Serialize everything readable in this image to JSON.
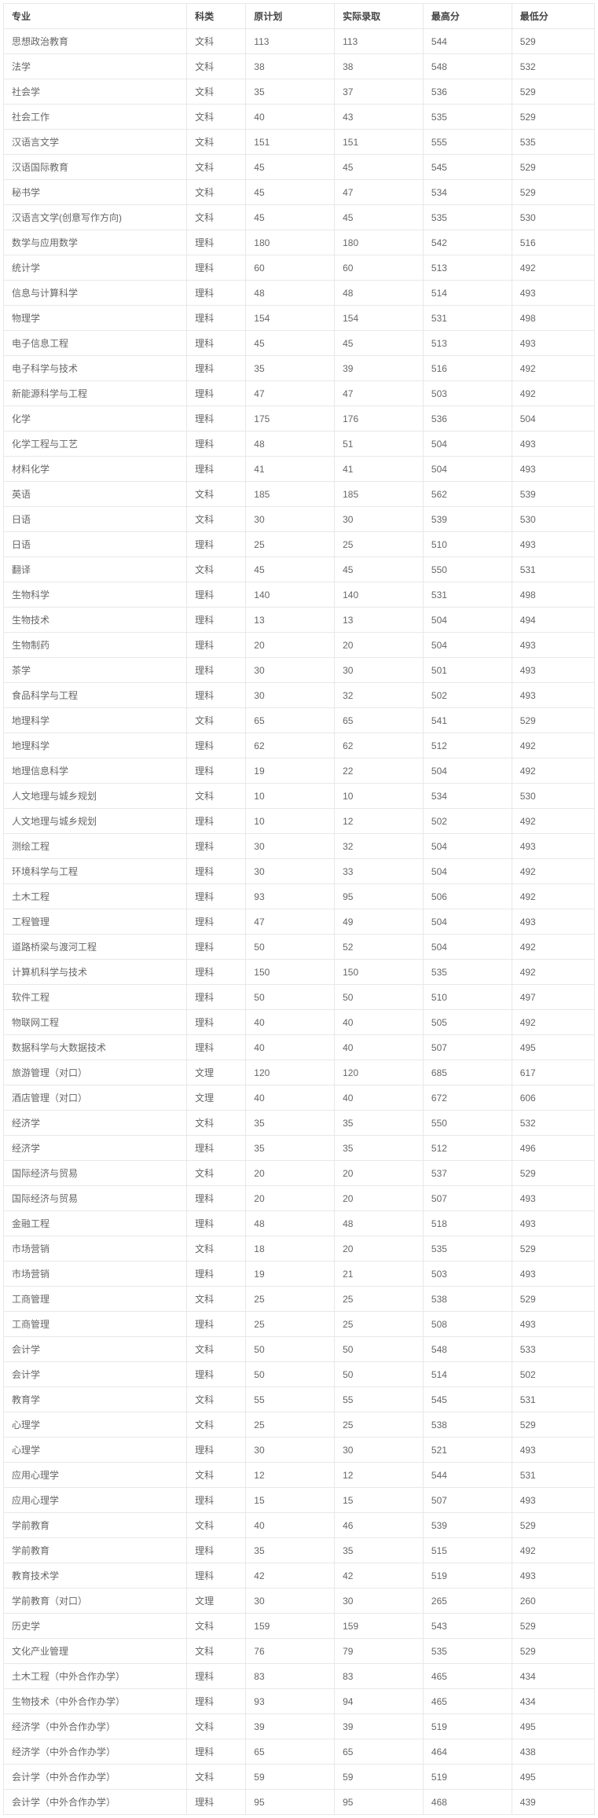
{
  "table": {
    "columns": [
      "专业",
      "科类",
      "原计划",
      "实际录取",
      "最高分",
      "最低分"
    ],
    "rows": [
      [
        "思想政治教育",
        "文科",
        "113",
        "113",
        "544",
        "529"
      ],
      [
        "法学",
        "文科",
        "38",
        "38",
        "548",
        "532"
      ],
      [
        "社会学",
        "文科",
        "35",
        "37",
        "536",
        "529"
      ],
      [
        "社会工作",
        "文科",
        "40",
        "43",
        "535",
        "529"
      ],
      [
        "汉语言文学",
        "文科",
        "151",
        "151",
        "555",
        "535"
      ],
      [
        "汉语国际教育",
        "文科",
        "45",
        "45",
        "545",
        "529"
      ],
      [
        "秘书学",
        "文科",
        "45",
        "47",
        "534",
        "529"
      ],
      [
        "汉语言文学(创意写作方向)",
        "文科",
        "45",
        "45",
        "535",
        "530"
      ],
      [
        "数学与应用数学",
        "理科",
        "180",
        "180",
        "542",
        "516"
      ],
      [
        "统计学",
        "理科",
        "60",
        "60",
        "513",
        "492"
      ],
      [
        "信息与计算科学",
        "理科",
        "48",
        "48",
        "514",
        "493"
      ],
      [
        "物理学",
        "理科",
        "154",
        "154",
        "531",
        "498"
      ],
      [
        "电子信息工程",
        "理科",
        "45",
        "45",
        "513",
        "493"
      ],
      [
        "电子科学与技术",
        "理科",
        "35",
        "39",
        "516",
        "492"
      ],
      [
        "新能源科学与工程",
        "理科",
        "47",
        "47",
        "503",
        "492"
      ],
      [
        "化学",
        "理科",
        "175",
        "176",
        "536",
        "504"
      ],
      [
        "化学工程与工艺",
        "理科",
        "48",
        "51",
        "504",
        "493"
      ],
      [
        "材料化学",
        "理科",
        "41",
        "41",
        "504",
        "493"
      ],
      [
        "英语",
        "文科",
        "185",
        "185",
        "562",
        "539"
      ],
      [
        "日语",
        "文科",
        "30",
        "30",
        "539",
        "530"
      ],
      [
        "日语",
        "理科",
        "25",
        "25",
        "510",
        "493"
      ],
      [
        "翻译",
        "文科",
        "45",
        "45",
        "550",
        "531"
      ],
      [
        "生物科学",
        "理科",
        "140",
        "140",
        "531",
        "498"
      ],
      [
        "生物技术",
        "理科",
        "13",
        "13",
        "504",
        "494"
      ],
      [
        "生物制药",
        "理科",
        "20",
        "20",
        "504",
        "493"
      ],
      [
        "茶学",
        "理科",
        "30",
        "30",
        "501",
        "493"
      ],
      [
        "食品科学与工程",
        "理科",
        "30",
        "32",
        "502",
        "493"
      ],
      [
        "地理科学",
        "文科",
        "65",
        "65",
        "541",
        "529"
      ],
      [
        "地理科学",
        "理科",
        "62",
        "62",
        "512",
        "492"
      ],
      [
        "地理信息科学",
        "理科",
        "19",
        "22",
        "504",
        "492"
      ],
      [
        "人文地理与城乡规划",
        "文科",
        "10",
        "10",
        "534",
        "530"
      ],
      [
        "人文地理与城乡规划",
        "理科",
        "10",
        "12",
        "502",
        "492"
      ],
      [
        "测绘工程",
        "理科",
        "30",
        "32",
        "504",
        "493"
      ],
      [
        "环境科学与工程",
        "理科",
        "30",
        "33",
        "504",
        "492"
      ],
      [
        "土木工程",
        "理科",
        "93",
        "95",
        "506",
        "492"
      ],
      [
        "工程管理",
        "理科",
        "47",
        "49",
        "504",
        "493"
      ],
      [
        "道路桥梁与渡河工程",
        "理科",
        "50",
        "52",
        "504",
        "492"
      ],
      [
        "计算机科学与技术",
        "理科",
        "150",
        "150",
        "535",
        "492"
      ],
      [
        "软件工程",
        "理科",
        "50",
        "50",
        "510",
        "497"
      ],
      [
        "物联网工程",
        "理科",
        "40",
        "40",
        "505",
        "492"
      ],
      [
        "数据科学与大数据技术",
        "理科",
        "40",
        "40",
        "507",
        "495"
      ],
      [
        "旅游管理（对口）",
        "文理",
        "120",
        "120",
        "685",
        "617"
      ],
      [
        "酒店管理（对口）",
        "文理",
        "40",
        "40",
        "672",
        "606"
      ],
      [
        "经济学",
        "文科",
        "35",
        "35",
        "550",
        "532"
      ],
      [
        "经济学",
        "理科",
        "35",
        "35",
        "512",
        "496"
      ],
      [
        "国际经济与贸易",
        "文科",
        "20",
        "20",
        "537",
        "529"
      ],
      [
        "国际经济与贸易",
        "理科",
        "20",
        "20",
        "507",
        "493"
      ],
      [
        "金融工程",
        "理科",
        "48",
        "48",
        "518",
        "493"
      ],
      [
        "市场营销",
        "文科",
        "18",
        "20",
        "535",
        "529"
      ],
      [
        "市场营销",
        "理科",
        "19",
        "21",
        "503",
        "493"
      ],
      [
        "工商管理",
        "文科",
        "25",
        "25",
        "538",
        "529"
      ],
      [
        "工商管理",
        "理科",
        "25",
        "25",
        "508",
        "493"
      ],
      [
        "会计学",
        "文科",
        "50",
        "50",
        "548",
        "533"
      ],
      [
        "会计学",
        "理科",
        "50",
        "50",
        "514",
        "502"
      ],
      [
        "教育学",
        "文科",
        "55",
        "55",
        "545",
        "531"
      ],
      [
        "心理学",
        "文科",
        "25",
        "25",
        "538",
        "529"
      ],
      [
        "心理学",
        "理科",
        "30",
        "30",
        "521",
        "493"
      ],
      [
        "应用心理学",
        "文科",
        "12",
        "12",
        "544",
        "531"
      ],
      [
        "应用心理学",
        "理科",
        "15",
        "15",
        "507",
        "493"
      ],
      [
        "学前教育",
        "文科",
        "40",
        "46",
        "539",
        "529"
      ],
      [
        "学前教育",
        "理科",
        "35",
        "35",
        "515",
        "492"
      ],
      [
        "教育技术学",
        "理科",
        "42",
        "42",
        "519",
        "493"
      ],
      [
        "学前教育（对口）",
        "文理",
        "30",
        "30",
        "265",
        "260"
      ],
      [
        "历史学",
        "文科",
        "159",
        "159",
        "543",
        "529"
      ],
      [
        "文化产业管理",
        "文科",
        "76",
        "79",
        "535",
        "529"
      ],
      [
        "土木工程（中外合作办学）",
        "理科",
        "83",
        "83",
        "465",
        "434"
      ],
      [
        "生物技术（中外合作办学）",
        "理科",
        "93",
        "94",
        "465",
        "434"
      ],
      [
        "经济学（中外合作办学）",
        "文科",
        "39",
        "39",
        "519",
        "495"
      ],
      [
        "经济学（中外合作办学）",
        "理科",
        "65",
        "65",
        "464",
        "438"
      ],
      [
        "会计学（中外合作办学）",
        "文科",
        "59",
        "59",
        "519",
        "495"
      ],
      [
        "会计学（中外合作办学）",
        "理科",
        "95",
        "95",
        "468",
        "439"
      ]
    ]
  }
}
